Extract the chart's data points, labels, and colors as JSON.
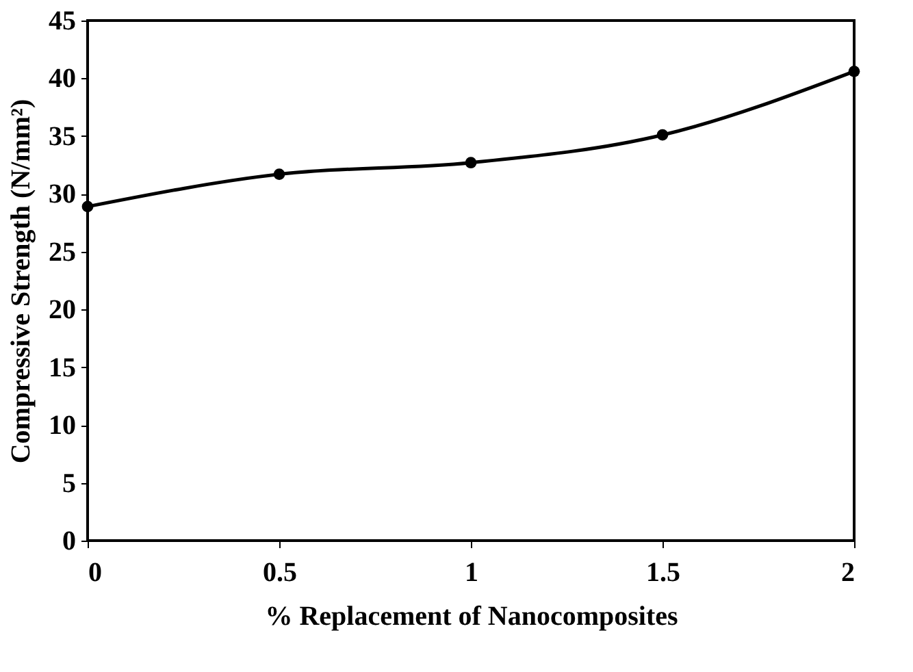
{
  "chart_data": {
    "type": "line",
    "xlabel": "% Replacement of Nanocomposites",
    "ylabel": "Compressive Strength (N/mm²)",
    "x": [
      0,
      0.5,
      1,
      1.5,
      2
    ],
    "series": [
      {
        "color": "#000000",
        "values": [
          28.9,
          31.7,
          32.7,
          35.1,
          40.6
        ]
      }
    ],
    "xlim": [
      0,
      2
    ],
    "xticks": [
      0,
      0.5,
      1,
      1.5,
      2
    ],
    "ylim": [
      0,
      45
    ],
    "yticks": [
      0,
      5,
      10,
      15,
      20,
      25,
      30,
      35,
      40,
      45
    ],
    "grid": false,
    "marker": "circle",
    "line_style": "solid"
  }
}
